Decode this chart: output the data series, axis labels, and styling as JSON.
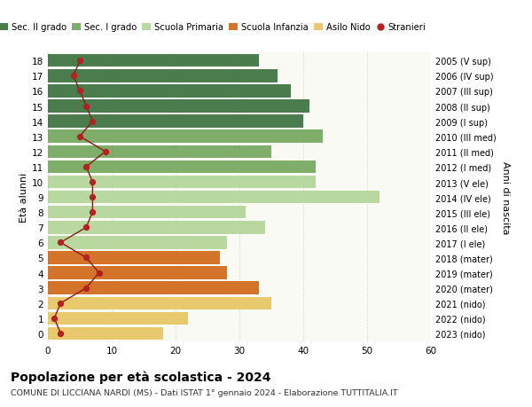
{
  "ages": [
    18,
    17,
    16,
    15,
    14,
    13,
    12,
    11,
    10,
    9,
    8,
    7,
    6,
    5,
    4,
    3,
    2,
    1,
    0
  ],
  "years": [
    "2005 (V sup)",
    "2006 (IV sup)",
    "2007 (III sup)",
    "2008 (II sup)",
    "2009 (I sup)",
    "2010 (III med)",
    "2011 (II med)",
    "2012 (I med)",
    "2013 (V ele)",
    "2014 (IV ele)",
    "2015 (III ele)",
    "2016 (II ele)",
    "2017 (I ele)",
    "2018 (mater)",
    "2019 (mater)",
    "2020 (mater)",
    "2021 (nido)",
    "2022 (nido)",
    "2023 (nido)"
  ],
  "bar_values": [
    33,
    36,
    38,
    41,
    40,
    43,
    35,
    42,
    42,
    52,
    31,
    34,
    28,
    27,
    28,
    33,
    35,
    22,
    18
  ],
  "bar_colors": [
    "#4a7c4e",
    "#4a7c4e",
    "#4a7c4e",
    "#4a7c4e",
    "#4a7c4e",
    "#7fad6a",
    "#7fad6a",
    "#7fad6a",
    "#b8d8a0",
    "#b8d8a0",
    "#b8d8a0",
    "#b8d8a0",
    "#b8d8a0",
    "#d4732a",
    "#d4732a",
    "#d4732a",
    "#e8c96e",
    "#e8c96e",
    "#e8c96e"
  ],
  "stranieri_values": [
    5,
    4,
    5,
    6,
    7,
    5,
    9,
    6,
    7,
    7,
    7,
    6,
    2,
    6,
    8,
    6,
    2,
    1,
    2
  ],
  "legend_labels": [
    "Sec. II grado",
    "Sec. I grado",
    "Scuola Primaria",
    "Scuola Infanzia",
    "Asilo Nido",
    "Stranieri"
  ],
  "legend_colors": [
    "#4a7c4e",
    "#7fad6a",
    "#b8d8a0",
    "#d4732a",
    "#e8c96e",
    "#b22222"
  ],
  "title": "Popolazione per età scolastica - 2024",
  "subtitle": "COMUNE DI LICCIANA NARDI (MS) - Dati ISTAT 1° gennaio 2024 - Elaborazione TUTTITALIA.IT",
  "ylabel_left": "Età alunni",
  "ylabel_right": "Anni di nascita",
  "xlim": [
    0,
    60
  ],
  "plot_bg_color": "#fafaf5",
  "fig_bg_color": "#ffffff",
  "grid_color": "#cccccc",
  "bar_height": 0.85,
  "stranieri_line_color": "#8b1a1a",
  "stranieri_dot_color": "#b22222",
  "stranieri_dot_size": 18
}
